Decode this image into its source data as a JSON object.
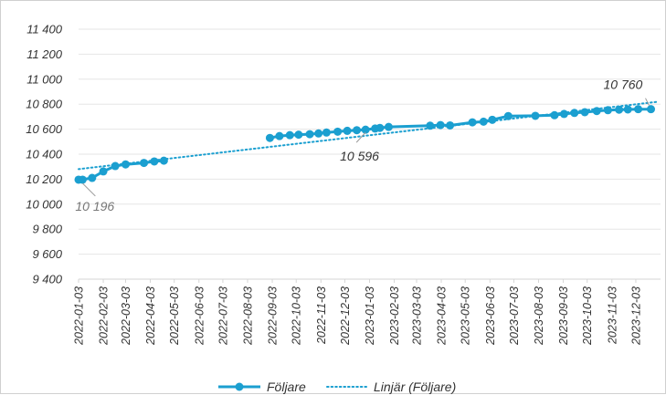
{
  "chart_data": {
    "type": "line",
    "title": "",
    "xlabel": "",
    "ylabel": "",
    "ylim": [
      9400,
      11400
    ],
    "yticks": [
      9400,
      9600,
      9800,
      10000,
      10200,
      10400,
      10600,
      10800,
      11000,
      11200,
      11400
    ],
    "ytick_labels": [
      "9 400",
      "9 600",
      "9 800",
      "10 000",
      "10 200",
      "10 400",
      "10 600",
      "10 800",
      "11 000",
      "11 200",
      "11 400"
    ],
    "x_tick_labels": [
      "2022-01-03",
      "2022-02-03",
      "2022-03-03",
      "2022-04-03",
      "2022-05-03",
      "2022-06-03",
      "2022-07-03",
      "2022-08-03",
      "2022-09-03",
      "2022-10-03",
      "2022-11-03",
      "2022-12-03",
      "2023-01-03",
      "2023-02-03",
      "2023-03-03",
      "2023-04-03",
      "2023-05-03",
      "2023-06-03",
      "2023-07-03",
      "2023-08-03",
      "2023-09-03",
      "2023-10-03",
      "2023-11-03",
      "2023-12-03"
    ],
    "grid": "horizontal",
    "legend_position": "bottom",
    "series": [
      {
        "name": "Följare",
        "style": "solid-with-markers",
        "color": "#1b9fd0",
        "points": [
          {
            "x": "2022-01-03",
            "y": 10196
          },
          {
            "x": "2022-01-08",
            "y": 10196
          },
          {
            "x": "2022-01-20",
            "y": 10210
          },
          {
            "x": "2022-02-03",
            "y": 10262
          },
          {
            "x": "2022-02-18",
            "y": 10305
          },
          {
            "x": "2022-03-03",
            "y": 10318
          },
          {
            "x": "2022-03-26",
            "y": 10330
          },
          {
            "x": "2022-04-08",
            "y": 10342
          },
          {
            "x": "2022-04-20",
            "y": 10348
          },
          {
            "x": null,
            "y": null
          },
          {
            "x": "2022-08-31",
            "y": 10530
          },
          {
            "x": "2022-09-12",
            "y": 10545
          },
          {
            "x": "2022-09-25",
            "y": 10552
          },
          {
            "x": "2022-10-06",
            "y": 10556
          },
          {
            "x": "2022-10-20",
            "y": 10560
          },
          {
            "x": "2022-10-31",
            "y": 10566
          },
          {
            "x": "2022-11-10",
            "y": 10573
          },
          {
            "x": "2022-11-24",
            "y": 10580
          },
          {
            "x": "2022-12-06",
            "y": 10587
          },
          {
            "x": "2022-12-18",
            "y": 10592
          },
          {
            "x": "2022-12-29",
            "y": 10596
          },
          {
            "x": "2023-01-10",
            "y": 10605
          },
          {
            "x": "2023-01-16",
            "y": 10610
          },
          {
            "x": "2023-01-27",
            "y": 10618
          },
          {
            "x": "2023-03-20",
            "y": 10628
          },
          {
            "x": "2023-04-02",
            "y": 10633
          },
          {
            "x": "2023-04-14",
            "y": 10630
          },
          {
            "x": "2023-05-12",
            "y": 10655
          },
          {
            "x": "2023-05-26",
            "y": 10660
          },
          {
            "x": "2023-06-06",
            "y": 10675
          },
          {
            "x": "2023-06-26",
            "y": 10705
          },
          {
            "x": "2023-07-30",
            "y": 10707
          },
          {
            "x": "2023-08-23",
            "y": 10712
          },
          {
            "x": "2023-09-04",
            "y": 10722
          },
          {
            "x": "2023-09-17",
            "y": 10730
          },
          {
            "x": "2023-09-30",
            "y": 10736
          },
          {
            "x": "2023-10-15",
            "y": 10745
          },
          {
            "x": "2023-10-29",
            "y": 10752
          },
          {
            "x": "2023-11-12",
            "y": 10756
          },
          {
            "x": "2023-11-23",
            "y": 10758
          },
          {
            "x": "2023-12-06",
            "y": 10760
          },
          {
            "x": "2023-12-22",
            "y": 10760
          }
        ]
      },
      {
        "name": "Linjär (Följare)",
        "style": "dotted",
        "color": "#1b9fd0",
        "points": [
          {
            "x": "2022-01-03",
            "y": 10280
          },
          {
            "x": "2023-12-31",
            "y": 10820
          }
        ]
      }
    ],
    "annotations": [
      {
        "text": "10 196",
        "x": "2022-01-08",
        "y": 10196,
        "color": "#777777"
      },
      {
        "text": "10 596",
        "x": "2022-12-29",
        "y": 10596,
        "color": "#333333"
      },
      {
        "text": "10 760",
        "x": "2023-12-22",
        "y": 10760,
        "color": "#333333"
      }
    ]
  }
}
